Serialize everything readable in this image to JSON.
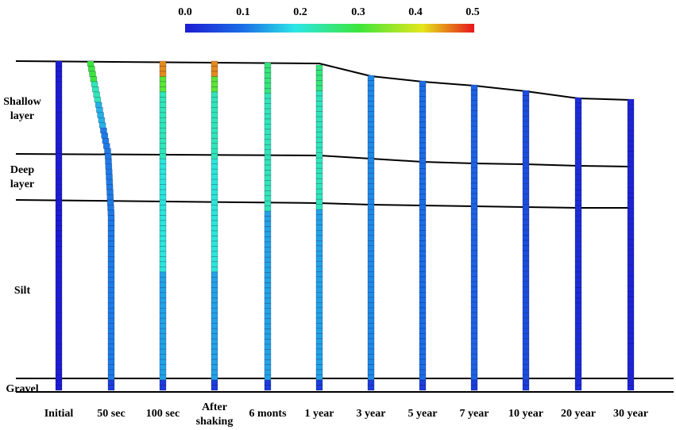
{
  "colorbar": {
    "ticks": [
      "0.0",
      "0.1",
      "0.2",
      "0.3",
      "0.4",
      "0.5"
    ],
    "range": [
      0,
      0.5
    ],
    "colors": [
      "#1c1cd2",
      "#1c6ee6",
      "#2ce6e6",
      "#3ce63c",
      "#e6e61c",
      "#e6161c"
    ]
  },
  "layers": {
    "shallow_line1": "Shallow",
    "shallow_line2": "layer",
    "deep_line1": "Deep",
    "deep_line2": "layer",
    "silt": "Silt",
    "gravel": "Gravel"
  },
  "columns": [
    {
      "label1": "Initial",
      "label2": "",
      "value": 0.0
    },
    {
      "label1": "50 sec",
      "label2": "",
      "value": 0.12
    },
    {
      "label1": "100 sec",
      "label2": "",
      "value": 0.18
    },
    {
      "label1": "After",
      "label2": "shaking",
      "value": 0.18
    },
    {
      "label1": "6 monts",
      "label2": "",
      "value": 0.2
    },
    {
      "label1": "1 year",
      "label2": "",
      "value": 0.22
    },
    {
      "label1": "3 year",
      "label2": "",
      "value": 0.12
    },
    {
      "label1": "5 year",
      "label2": "",
      "value": 0.1
    },
    {
      "label1": "7 year",
      "label2": "",
      "value": 0.085
    },
    {
      "label1": "10 year",
      "label2": "",
      "value": 0.06
    },
    {
      "label1": "20 year",
      "label2": "",
      "value": 0.02
    },
    {
      "label1": "30 year",
      "label2": "",
      "value": 0.01
    }
  ]
}
